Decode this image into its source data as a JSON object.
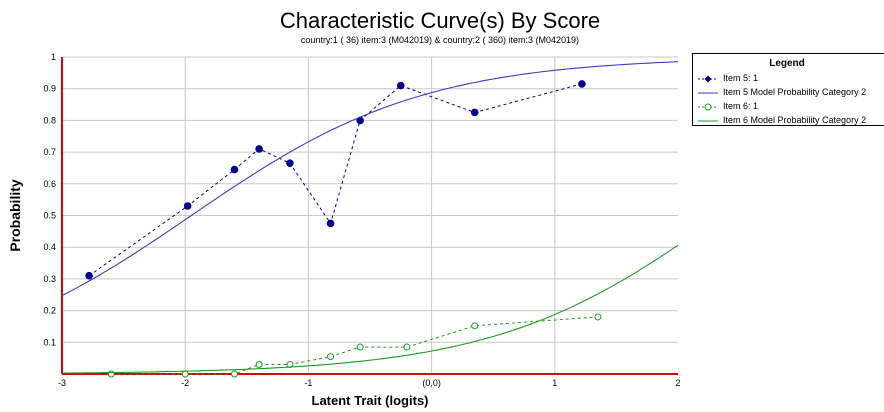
{
  "chart_data": {
    "type": "line",
    "title": "Characteristic Curve(s) By Score",
    "subtitle": "country:1 (   36) item:3 (M042019) & country:2 (  360) item:3 (M042019)",
    "xlabel": "Latent Trait (logits)",
    "ylabel": "Probability",
    "xlim": [
      -3,
      2
    ],
    "ylim": [
      0,
      1
    ],
    "x_ticks": [
      -3,
      -2,
      -1,
      0,
      1,
      2
    ],
    "x_tick_labels": [
      "-3",
      "-2",
      "-1",
      "(0,0)",
      "1",
      "2"
    ],
    "y_ticks": [
      0.1,
      0.2,
      0.3,
      0.4,
      0.5,
      0.6,
      0.7,
      0.8,
      0.9,
      1
    ],
    "y_tick_labels": [
      "0.1",
      "0.2",
      "0.3",
      "0.4",
      "0.5",
      "0.6",
      "0.7",
      "0.8",
      "0.9",
      "1"
    ],
    "grid": true,
    "legend_title": "Legend",
    "legend_position": "right",
    "series": [
      {
        "name": "Item 5: 1",
        "style": "dashed-marker-filled",
        "color": "#00008B",
        "x": [
          -2.78,
          -1.98,
          -1.6,
          -1.4,
          -1.15,
          -0.82,
          -0.58,
          -0.25,
          0.35,
          1.22
        ],
        "y": [
          0.31,
          0.53,
          0.645,
          0.71,
          0.665,
          0.475,
          0.8,
          0.91,
          0.825,
          0.915
        ]
      },
      {
        "name": "Item 5 Model Probability Category 2",
        "style": "solid",
        "color": "#3A3AC8",
        "curve": {
          "a": 1.06,
          "b": -1.95
        }
      },
      {
        "name": "Item 6: 1",
        "style": "dashed-marker-open",
        "color": "#1E9A1E",
        "x": [
          -2.6,
          -2.0,
          -1.6,
          -1.4,
          -1.15,
          -0.82,
          -0.58,
          -0.2,
          0.35,
          1.35
        ],
        "y": [
          0.0,
          0.0,
          0.0,
          0.03,
          0.03,
          0.055,
          0.085,
          0.085,
          0.152,
          0.18
        ]
      },
      {
        "name": "Item 6 Model Probability Category 2",
        "style": "solid",
        "color": "#1E9A1E",
        "curve": {
          "a": 1.085,
          "b": 2.35
        }
      }
    ]
  }
}
